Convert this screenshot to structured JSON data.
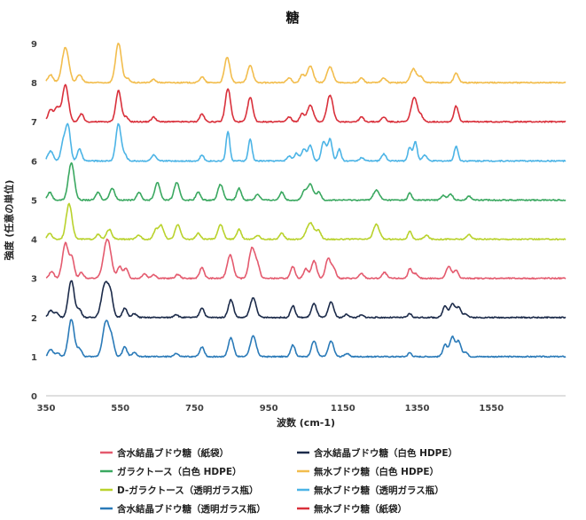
{
  "chart_data": {
    "type": "line",
    "title": "糖",
    "xlabel": "波数 (cm-1)",
    "ylabel": "強度 (任意の単位)",
    "xlim": [
      350,
      1750
    ],
    "ylim": [
      0,
      9
    ],
    "xticks": [
      "350",
      "550",
      "750",
      "950",
      "1150",
      "1350",
      "1550"
    ],
    "yticks": [
      "0",
      "1",
      "2",
      "3",
      "4",
      "5",
      "6",
      "7",
      "8",
      "9"
    ],
    "grid": false,
    "legend_position": "bottom",
    "series": [
      {
        "name": "含水結晶ブドウ糖（紙袋）",
        "color": "#e45a6e",
        "baseline": 3.0,
        "peaks": [
          [
            365,
            0.18,
            6
          ],
          [
            402,
            0.9,
            8
          ],
          [
            420,
            0.5,
            6
          ],
          [
            445,
            0.15,
            6
          ],
          [
            515,
            1.0,
            10
          ],
          [
            548,
            0.3,
            6
          ],
          [
            565,
            0.25,
            6
          ],
          [
            615,
            0.12,
            6
          ],
          [
            640,
            0.1,
            6
          ],
          [
            705,
            0.1,
            6
          ],
          [
            770,
            0.28,
            6
          ],
          [
            846,
            0.6,
            8
          ],
          [
            905,
            0.78,
            8
          ],
          [
            920,
            0.3,
            6
          ],
          [
            1015,
            0.3,
            6
          ],
          [
            1050,
            0.25,
            6
          ],
          [
            1072,
            0.45,
            7
          ],
          [
            1110,
            0.5,
            7
          ],
          [
            1125,
            0.25,
            6
          ],
          [
            1200,
            0.12,
            6
          ],
          [
            1262,
            0.15,
            6
          ],
          [
            1330,
            0.25,
            5
          ],
          [
            1345,
            0.12,
            6
          ],
          [
            1435,
            0.3,
            7
          ],
          [
            1455,
            0.2,
            6
          ]
        ]
      },
      {
        "name": "含水結晶ブドウ糖（白色 HDPE）",
        "color": "#1c2b4a",
        "baseline": 2.0,
        "peaks": [
          [
            362,
            0.18,
            6
          ],
          [
            378,
            0.12,
            6
          ],
          [
            418,
            0.95,
            8
          ],
          [
            440,
            0.2,
            6
          ],
          [
            510,
            0.9,
            10
          ],
          [
            525,
            0.4,
            6
          ],
          [
            562,
            0.25,
            6
          ],
          [
            588,
            0.1,
            6
          ],
          [
            700,
            0.08,
            6
          ],
          [
            770,
            0.25,
            6
          ],
          [
            848,
            0.45,
            7
          ],
          [
            908,
            0.5,
            8
          ],
          [
            1015,
            0.3,
            6
          ],
          [
            1072,
            0.35,
            7
          ],
          [
            1118,
            0.4,
            7
          ],
          [
            1160,
            0.08,
            6
          ],
          [
            1200,
            0.06,
            6
          ],
          [
            1330,
            0.1,
            5
          ],
          [
            1425,
            0.3,
            6
          ],
          [
            1445,
            0.35,
            7
          ],
          [
            1462,
            0.25,
            6
          ],
          [
            1480,
            0.1,
            6
          ]
        ]
      },
      {
        "name": "ガラクトース（白色 HDPE）",
        "color": "#3aa860",
        "baseline": 5.0,
        "peaks": [
          [
            360,
            0.2,
            6
          ],
          [
            418,
            0.95,
            8
          ],
          [
            490,
            0.2,
            6
          ],
          [
            528,
            0.3,
            7
          ],
          [
            600,
            0.2,
            6
          ],
          [
            650,
            0.45,
            7
          ],
          [
            702,
            0.45,
            7
          ],
          [
            760,
            0.2,
            6
          ],
          [
            820,
            0.4,
            7
          ],
          [
            870,
            0.3,
            6
          ],
          [
            920,
            0.15,
            6
          ],
          [
            985,
            0.2,
            6
          ],
          [
            1045,
            0.2,
            6
          ],
          [
            1062,
            0.4,
            8
          ],
          [
            1085,
            0.2,
            6
          ],
          [
            1240,
            0.25,
            8
          ],
          [
            1330,
            0.18,
            5
          ],
          [
            1420,
            0.12,
            6
          ],
          [
            1440,
            0.15,
            6
          ],
          [
            1490,
            0.1,
            6
          ]
        ]
      },
      {
        "name": "無水ブドウ糖（白色 HDPE）",
        "color": "#f2bd4d",
        "baseline": 8.0,
        "peaks": [
          [
            362,
            0.2,
            7
          ],
          [
            402,
            0.9,
            9
          ],
          [
            440,
            0.2,
            7
          ],
          [
            545,
            1.0,
            8
          ],
          [
            570,
            0.1,
            6
          ],
          [
            640,
            0.08,
            6
          ],
          [
            770,
            0.15,
            6
          ],
          [
            838,
            0.65,
            7
          ],
          [
            900,
            0.45,
            7
          ],
          [
            1005,
            0.12,
            6
          ],
          [
            1040,
            0.2,
            6
          ],
          [
            1062,
            0.42,
            8
          ],
          [
            1115,
            0.4,
            8
          ],
          [
            1200,
            0.12,
            6
          ],
          [
            1260,
            0.12,
            6
          ],
          [
            1340,
            0.35,
            8
          ],
          [
            1360,
            0.15,
            6
          ],
          [
            1455,
            0.25,
            6
          ]
        ]
      },
      {
        "name": "D-ガラクトース（透明ガラス瓶）",
        "color": "#b9d22c",
        "baseline": 4.0,
        "peaks": [
          [
            360,
            0.15,
            6
          ],
          [
            412,
            0.9,
            8
          ],
          [
            490,
            0.12,
            6
          ],
          [
            520,
            0.25,
            7
          ],
          [
            600,
            0.1,
            6
          ],
          [
            645,
            0.22,
            6
          ],
          [
            660,
            0.35,
            7
          ],
          [
            705,
            0.38,
            7
          ],
          [
            760,
            0.15,
            6
          ],
          [
            820,
            0.38,
            7
          ],
          [
            870,
            0.25,
            6
          ],
          [
            920,
            0.1,
            6
          ],
          [
            985,
            0.15,
            6
          ],
          [
            1062,
            0.42,
            10
          ],
          [
            1085,
            0.2,
            6
          ],
          [
            1240,
            0.38,
            8
          ],
          [
            1330,
            0.2,
            5
          ],
          [
            1375,
            0.1,
            6
          ],
          [
            1490,
            0.12,
            6
          ]
        ]
      },
      {
        "name": "無水ブドウ糖（透明ガラス瓶）",
        "color": "#4cb4e6",
        "baseline": 6.0,
        "peaks": [
          [
            362,
            0.25,
            7
          ],
          [
            398,
            0.55,
            7
          ],
          [
            410,
            0.8,
            6
          ],
          [
            440,
            0.3,
            6
          ],
          [
            545,
            0.95,
            7
          ],
          [
            562,
            0.15,
            6
          ],
          [
            640,
            0.15,
            6
          ],
          [
            770,
            0.15,
            5
          ],
          [
            840,
            0.75,
            5
          ],
          [
            900,
            0.55,
            5
          ],
          [
            1005,
            0.12,
            6
          ],
          [
            1025,
            0.2,
            6
          ],
          [
            1045,
            0.3,
            6
          ],
          [
            1062,
            0.4,
            6
          ],
          [
            1098,
            0.5,
            6
          ],
          [
            1115,
            0.55,
            6
          ],
          [
            1140,
            0.3,
            5
          ],
          [
            1200,
            0.08,
            6
          ],
          [
            1260,
            0.18,
            6
          ],
          [
            1330,
            0.35,
            5
          ],
          [
            1345,
            0.5,
            5
          ],
          [
            1370,
            0.15,
            6
          ],
          [
            1455,
            0.38,
            5
          ]
        ]
      },
      {
        "name": "含水結晶ブドウ糖（透明ガラス瓶）",
        "color": "#2a7ab8",
        "baseline": 1.0,
        "peaks": [
          [
            362,
            0.18,
            6
          ],
          [
            380,
            0.1,
            6
          ],
          [
            418,
            0.95,
            8
          ],
          [
            440,
            0.2,
            6
          ],
          [
            512,
            0.92,
            9
          ],
          [
            528,
            0.35,
            6
          ],
          [
            562,
            0.25,
            6
          ],
          [
            588,
            0.1,
            6
          ],
          [
            700,
            0.08,
            6
          ],
          [
            770,
            0.25,
            6
          ],
          [
            848,
            0.48,
            7
          ],
          [
            908,
            0.52,
            8
          ],
          [
            1015,
            0.3,
            6
          ],
          [
            1072,
            0.4,
            7
          ],
          [
            1118,
            0.4,
            7
          ],
          [
            1160,
            0.08,
            6
          ],
          [
            1330,
            0.1,
            5
          ],
          [
            1425,
            0.3,
            6
          ],
          [
            1445,
            0.5,
            7
          ],
          [
            1462,
            0.38,
            6
          ],
          [
            1480,
            0.12,
            6
          ]
        ]
      },
      {
        "name": "無水ブドウ糖（紙袋）",
        "color": "#d9303b",
        "baseline": 7.0,
        "peaks": [
          [
            362,
            0.3,
            7
          ],
          [
            380,
            0.35,
            7
          ],
          [
            402,
            0.95,
            8
          ],
          [
            445,
            0.2,
            6
          ],
          [
            545,
            0.8,
            7
          ],
          [
            565,
            0.12,
            6
          ],
          [
            640,
            0.12,
            6
          ],
          [
            770,
            0.2,
            6
          ],
          [
            840,
            0.85,
            7
          ],
          [
            900,
            0.62,
            7
          ],
          [
            1005,
            0.12,
            6
          ],
          [
            1040,
            0.2,
            6
          ],
          [
            1062,
            0.42,
            8
          ],
          [
            1115,
            0.68,
            8
          ],
          [
            1200,
            0.12,
            6
          ],
          [
            1260,
            0.12,
            6
          ],
          [
            1342,
            0.62,
            8
          ],
          [
            1360,
            0.15,
            6
          ],
          [
            1455,
            0.4,
            6
          ]
        ]
      }
    ]
  }
}
